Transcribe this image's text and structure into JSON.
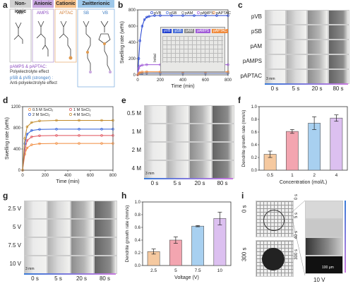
{
  "panel_a": {
    "label": "a",
    "categories": [
      {
        "name": "Non-ionic",
        "color": "#d0d0d0",
        "text": "#333"
      },
      {
        "name": "Anionic",
        "color": "#c9a8e0",
        "text": "#333"
      },
      {
        "name": "Cationic",
        "color": "#f4c08a",
        "text": "#333"
      },
      {
        "name": "Zwitterionic",
        "color": "#9ec8ea",
        "text": "#333"
      }
    ],
    "monomers": [
      "AM",
      "AMPS",
      "APTAC",
      "SB",
      "VB"
    ],
    "legend_line1": "pAMPS & pAPTAC:",
    "legend_line1b": "Polyelectrolyte effect",
    "legend_line2": "pSB & pVB (stronger) :",
    "legend_line2b": "Anti-polyelectrolyte effect"
  },
  "panel_b": {
    "label": "b",
    "inset_labels": [
      "pVB",
      "pSB",
      "pAM",
      "pAMPS",
      "pAPTAC"
    ],
    "inset_label": "Initial"
  },
  "panel_c": {
    "label": "c",
    "rows": [
      "pVB",
      "pSB",
      "pAM",
      "pAMPS",
      "pAPTAC"
    ],
    "cols": [
      "0 s",
      "5 s",
      "20 s",
      "80 s"
    ],
    "scale": "3 mm"
  },
  "panel_d": {
    "label": "d"
  },
  "panel_e": {
    "label": "e",
    "rows": [
      "0.5 M",
      "1 M",
      "2 M",
      "4 M"
    ],
    "cols": [
      "0 s",
      "5 s",
      "20 s",
      "80 s"
    ],
    "scale": "3 mm"
  },
  "panel_f": {
    "label": "f"
  },
  "panel_g": {
    "label": "g",
    "rows": [
      "2.5 V",
      "5 V",
      "7.5 V",
      "10 V"
    ],
    "cols": [
      "0 s",
      "5 s",
      "20 s",
      "80 s"
    ],
    "scale": "3 mm"
  },
  "panel_h": {
    "label": "h"
  },
  "panel_i": {
    "label": "i",
    "left_rows": [
      "0 s",
      "300 s"
    ],
    "right_rows": [
      "0 s",
      "5 s",
      "40 s",
      "300 s"
    ],
    "voltage": "10 V",
    "scale": "100 μm"
  },
  "chart_data": [
    {
      "id": "b",
      "type": "line",
      "xlabel": "Time (min)",
      "ylabel": "Swelling rate (wt%)",
      "xlim": [
        0,
        800
      ],
      "ylim": [
        0,
        800
      ],
      "xticks": [
        0,
        200,
        400,
        600,
        800
      ],
      "yticks": [
        0,
        200,
        400,
        600,
        800
      ],
      "legend_position": "top-right",
      "series": [
        {
          "name": "pVB",
          "color": "#1f3fd1",
          "marker": "o",
          "values": [
            [
              0,
              0
            ],
            [
              10,
              200
            ],
            [
              20,
              420
            ],
            [
              40,
              600
            ],
            [
              60,
              680
            ],
            [
              80,
              710
            ],
            [
              100,
              720
            ],
            [
              150,
              730
            ],
            [
              200,
              730
            ],
            [
              300,
              730
            ],
            [
              400,
              730
            ],
            [
              500,
              730
            ],
            [
              600,
              730
            ],
            [
              700,
              730
            ],
            [
              800,
              730
            ]
          ]
        },
        {
          "name": "pSB",
          "color": "#4a6fd8",
          "marker": "o",
          "values": [
            [
              0,
              0
            ],
            [
              10,
              10
            ],
            [
              20,
              15
            ],
            [
              40,
              18
            ],
            [
              80,
              20
            ],
            [
              200,
              20
            ],
            [
              400,
              20
            ],
            [
              600,
              20
            ],
            [
              800,
              20
            ]
          ]
        },
        {
          "name": "pAM",
          "color": "#8a8a8a",
          "marker": "o",
          "values": [
            [
              0,
              0
            ],
            [
              10,
              12
            ],
            [
              20,
              18
            ],
            [
              40,
              22
            ],
            [
              80,
              24
            ],
            [
              200,
              25
            ],
            [
              400,
              25
            ],
            [
              600,
              25
            ],
            [
              800,
              25
            ]
          ]
        },
        {
          "name": "pAMPS",
          "color": "#a05ad8",
          "marker": "o",
          "values": [
            [
              0,
              0
            ],
            [
              10,
              80
            ],
            [
              20,
              110
            ],
            [
              40,
              120
            ],
            [
              80,
              125
            ],
            [
              200,
              125
            ],
            [
              400,
              125
            ],
            [
              600,
              125
            ],
            [
              800,
              125
            ]
          ]
        },
        {
          "name": "pAPTAC",
          "color": "#f08a3c",
          "marker": "o",
          "values": [
            [
              0,
              0
            ],
            [
              10,
              20
            ],
            [
              20,
              30
            ],
            [
              40,
              35
            ],
            [
              80,
              38
            ],
            [
              200,
              38
            ],
            [
              400,
              38
            ],
            [
              600,
              38
            ],
            [
              800,
              38
            ]
          ]
        }
      ]
    },
    {
      "id": "d",
      "type": "line",
      "xlabel": "Time (min)",
      "ylabel": "Swelling rate (wt%)",
      "xlim": [
        0,
        800
      ],
      "ylim": [
        0,
        1200
      ],
      "xticks": [
        0,
        200,
        400,
        600,
        800
      ],
      "yticks": [
        0,
        400,
        800,
        1200
      ],
      "legend_position": "top",
      "series": [
        {
          "name": "0.5 M SnCl₂",
          "color": "#f08a3c",
          "values": [
            [
              0,
              0
            ],
            [
              20,
              300
            ],
            [
              40,
              420
            ],
            [
              80,
              480
            ],
            [
              150,
              500
            ],
            [
              300,
              505
            ],
            [
              500,
              505
            ],
            [
              700,
              505
            ],
            [
              800,
              505
            ]
          ]
        },
        {
          "name": "1 M SnCl₂",
          "color": "#e0505a",
          "values": [
            [
              0,
              0
            ],
            [
              20,
              380
            ],
            [
              40,
              560
            ],
            [
              80,
              630
            ],
            [
              150,
              650
            ],
            [
              300,
              655
            ],
            [
              500,
              655
            ],
            [
              700,
              655
            ],
            [
              800,
              655
            ]
          ]
        },
        {
          "name": "2 M SnCl₂",
          "color": "#2a5bd8",
          "values": [
            [
              0,
              0
            ],
            [
              20,
              500
            ],
            [
              40,
              680
            ],
            [
              80,
              750
            ],
            [
              150,
              770
            ],
            [
              300,
              775
            ],
            [
              500,
              775
            ],
            [
              700,
              775
            ],
            [
              800,
              775
            ]
          ]
        },
        {
          "name": "4 M SnCl₂",
          "color": "#c28a2a",
          "values": [
            [
              0,
              0
            ],
            [
              20,
              600
            ],
            [
              40,
              820
            ],
            [
              80,
              900
            ],
            [
              150,
              930
            ],
            [
              300,
              940
            ],
            [
              500,
              940
            ],
            [
              700,
              940
            ],
            [
              800,
              940
            ]
          ]
        }
      ]
    },
    {
      "id": "f",
      "type": "bar",
      "xlabel": "Concentration (mol/L)",
      "ylabel": "Dendrite growth rate (mm/s)",
      "ylim": [
        0,
        1.0
      ],
      "yticks": [
        0,
        0.2,
        0.4,
        0.6,
        0.8,
        1.0
      ],
      "categories": [
        "0.5",
        "1",
        "2",
        "4"
      ],
      "values": [
        0.25,
        0.61,
        0.74,
        0.82
      ],
      "errors": [
        0.05,
        0.03,
        0.1,
        0.05
      ],
      "colors": [
        "#f5c9a0",
        "#f3a5b0",
        "#a8d0f0",
        "#dcc0f0"
      ]
    },
    {
      "id": "h",
      "type": "bar",
      "xlabel": "Voltage (V)",
      "ylabel": "Dendrite growth rate (mm/s)",
      "ylim": [
        0,
        1.0
      ],
      "yticks": [
        0,
        0.2,
        0.4,
        0.6,
        0.8,
        1.0
      ],
      "categories": [
        "2.5",
        "5",
        "7.5",
        "10"
      ],
      "values": [
        0.22,
        0.4,
        0.62,
        0.74
      ],
      "errors": [
        0.04,
        0.05,
        0.01,
        0.1
      ],
      "colors": [
        "#f5c9a0",
        "#f3a5b0",
        "#a8d0f0",
        "#dcc0f0"
      ]
    }
  ]
}
